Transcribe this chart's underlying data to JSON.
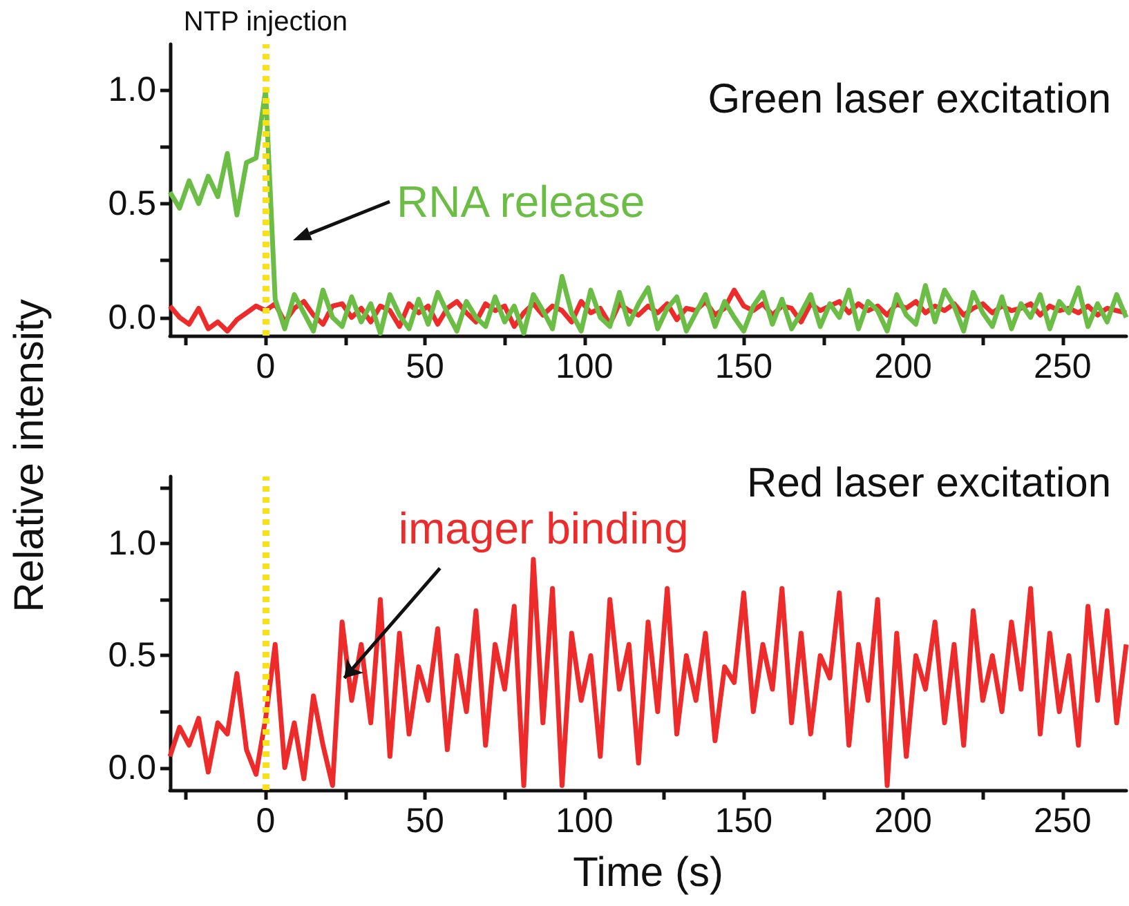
{
  "chart_data": [
    {
      "type": "line",
      "title": "Green laser excitation",
      "ylabel": "Relative intensity",
      "x": [
        -30,
        -27,
        -24,
        -21,
        -18,
        -15,
        -12,
        -9,
        -6,
        -3,
        0,
        3,
        6,
        9,
        12,
        15,
        18,
        21,
        24,
        27,
        30,
        33,
        36,
        39,
        42,
        45,
        48,
        51,
        54,
        57,
        60,
        63,
        66,
        69,
        72,
        75,
        78,
        81,
        84,
        87,
        90,
        93,
        96,
        99,
        102,
        105,
        108,
        111,
        114,
        117,
        120,
        123,
        126,
        129,
        132,
        135,
        138,
        141,
        144,
        147,
        150,
        153,
        156,
        159,
        162,
        165,
        168,
        171,
        174,
        177,
        180,
        183,
        186,
        189,
        192,
        195,
        198,
        201,
        204,
        207,
        210,
        213,
        216,
        219,
        222,
        225,
        228,
        231,
        234,
        237,
        240,
        243,
        246,
        249,
        252,
        255,
        258,
        261,
        264,
        267,
        270
      ],
      "series": [
        {
          "color": "#ee2b2b",
          "values": [
            0.05,
            0.0,
            -0.03,
            0.04,
            -0.05,
            -0.02,
            -0.06,
            -0.01,
            0.02,
            0.05,
            0.03,
            0.06,
            -0.02,
            0.04,
            0.07,
            0.01,
            -0.03,
            0.05,
            0.06,
            0.0,
            0.04,
            -0.02,
            0.05,
            0.03,
            -0.04,
            0.06,
            0.02,
            0.05,
            -0.03,
            0.04,
            0.07,
            0.02,
            -0.02,
            0.06,
            0.03,
            0.05,
            -0.04,
            0.02,
            0.06,
            0.01,
            0.05,
            0.03,
            -0.02,
            0.07,
            0.02,
            0.04,
            -0.03,
            0.06,
            0.03,
            0.01,
            0.05,
            0.02,
            0.06,
            -0.01,
            0.04,
            0.03,
            0.07,
            0.01,
            0.04,
            0.12,
            0.05,
            0.03,
            0.06,
            0.01,
            0.05,
            0.04,
            -0.02,
            0.06,
            0.03,
            0.05,
            0.07,
            0.02,
            0.06,
            0.03,
            0.05,
            0.01,
            0.06,
            0.04,
            0.07,
            0.02,
            0.05,
            0.03,
            0.06,
            0.01,
            0.04,
            0.06,
            0.02,
            0.05,
            0.03,
            0.04,
            0.06,
            0.01,
            0.05,
            0.03,
            0.04,
            0.02,
            0.05,
            0.01,
            0.04,
            0.03,
            0.02
          ]
        },
        {
          "color": "#6cbd45",
          "values": [
            0.55,
            0.48,
            0.6,
            0.5,
            0.62,
            0.53,
            0.72,
            0.45,
            0.68,
            0.7,
            1.0,
            0.08,
            -0.05,
            0.1,
            0.02,
            -0.06,
            0.12,
            0.0,
            -0.04,
            0.09,
            -0.02,
            0.06,
            -0.07,
            0.1,
            0.01,
            -0.05,
            0.08,
            -0.03,
            0.11,
            0.02,
            -0.06,
            0.07,
            0.0,
            -0.04,
            0.09,
            -0.02,
            0.05,
            -0.07,
            0.1,
            0.03,
            -0.05,
            0.18,
            0.02,
            -0.06,
            0.12,
            0.0,
            -0.04,
            0.11,
            -0.03,
            0.06,
            0.13,
            -0.05,
            0.04,
            0.09,
            -0.06,
            0.02,
            0.1,
            -0.04,
            0.07,
            0.0,
            -0.06,
            0.05,
            0.11,
            -0.03,
            0.08,
            -0.05,
            0.02,
            0.1,
            -0.04,
            0.06,
            0.0,
            0.12,
            -0.05,
            0.07,
            0.03,
            -0.06,
            0.1,
            0.01,
            -0.03,
            0.14,
            -0.02,
            0.12,
            0.05,
            -0.06,
            0.11,
            0.02,
            -0.04,
            0.09,
            -0.05,
            0.06,
            0.0,
            0.1,
            -0.05,
            0.07,
            0.02,
            0.13,
            -0.04,
            0.06,
            -0.02,
            0.1,
            0.0
          ]
        }
      ],
      "xlim": [
        -30,
        270
      ],
      "xticks": [
        {
          "value": -25,
          "label": null
        },
        0,
        {
          "value": 25,
          "label": null
        },
        50,
        {
          "value": 75,
          "label": null
        },
        100,
        {
          "value": 125,
          "label": null
        },
        150,
        {
          "value": 175,
          "label": null
        },
        200,
        {
          "value": 225,
          "label": null
        },
        250
      ],
      "ylim": [
        -0.08,
        1.2
      ],
      "yticks": [
        {
          "value": 0,
          "label": "0.0"
        },
        {
          "value": 0.25,
          "label": null
        },
        {
          "value": 0.5,
          "label": "0.5"
        },
        {
          "value": 0.75,
          "label": null
        },
        {
          "value": 1,
          "label": "1.0"
        }
      ],
      "ref_lines": [
        {
          "axis": "x",
          "value": 0,
          "label": "NTP injection",
          "color": "#f7e11c",
          "line_style": "dotted"
        }
      ],
      "annotations": [
        "RNA release"
      ]
    },
    {
      "type": "line",
      "title": "Red laser excitation",
      "xlabel": "Time (s)",
      "x": [
        -30,
        -27,
        -24,
        -21,
        -18,
        -15,
        -12,
        -9,
        -6,
        -3,
        0,
        3,
        6,
        9,
        12,
        15,
        18,
        21,
        24,
        27,
        30,
        33,
        36,
        39,
        42,
        45,
        48,
        51,
        54,
        57,
        60,
        63,
        66,
        69,
        72,
        75,
        78,
        81,
        84,
        87,
        90,
        93,
        96,
        99,
        102,
        105,
        108,
        111,
        114,
        117,
        120,
        123,
        126,
        129,
        132,
        135,
        138,
        141,
        144,
        147,
        150,
        153,
        156,
        159,
        162,
        165,
        168,
        171,
        174,
        177,
        180,
        183,
        186,
        189,
        192,
        195,
        198,
        201,
        204,
        207,
        210,
        213,
        216,
        219,
        222,
        225,
        228,
        231,
        234,
        237,
        240,
        243,
        246,
        249,
        252,
        255,
        258,
        261,
        264,
        267,
        270
      ],
      "series": [
        {
          "color": "#ee2b2b",
          "values": [
            0.05,
            0.18,
            0.1,
            0.22,
            -0.02,
            0.2,
            0.15,
            0.42,
            0.08,
            -0.03,
            0.22,
            0.55,
            0.0,
            0.2,
            -0.05,
            0.32,
            0.1,
            -0.08,
            0.65,
            0.3,
            0.55,
            0.2,
            0.75,
            0.05,
            0.6,
            0.15,
            0.45,
            0.3,
            0.62,
            0.08,
            0.5,
            0.25,
            0.7,
            0.1,
            0.55,
            0.35,
            0.72,
            -0.08,
            0.93,
            0.2,
            0.8,
            -0.08,
            0.6,
            0.3,
            0.5,
            0.05,
            0.75,
            0.35,
            0.55,
            0.02,
            0.65,
            0.25,
            0.8,
            0.15,
            0.5,
            0.3,
            0.6,
            0.12,
            0.45,
            0.38,
            0.78,
            0.25,
            0.55,
            0.35,
            0.8,
            0.2,
            0.6,
            0.15,
            0.5,
            0.4,
            0.78,
            0.1,
            0.55,
            0.3,
            0.75,
            -0.08,
            0.6,
            0.05,
            0.5,
            0.35,
            0.65,
            0.2,
            0.55,
            0.1,
            0.7,
            0.3,
            0.5,
            0.25,
            0.65,
            0.35,
            0.8,
            0.15,
            0.6,
            0.25,
            0.5,
            0.1,
            0.72,
            0.3,
            0.7,
            0.2,
            0.55
          ]
        }
      ],
      "xlim": [
        -30,
        270
      ],
      "xticks": [
        {
          "value": -25,
          "label": null
        },
        0,
        {
          "value": 25,
          "label": null
        },
        50,
        {
          "value": 75,
          "label": null
        },
        100,
        {
          "value": 125,
          "label": null
        },
        150,
        {
          "value": 175,
          "label": null
        },
        200,
        {
          "value": 225,
          "label": null
        },
        250
      ],
      "ylim": [
        -0.1,
        1.3
      ],
      "yticks": [
        {
          "value": 0,
          "label": "0.0"
        },
        {
          "value": 0.25,
          "label": null
        },
        {
          "value": 0.5,
          "label": "0.5"
        },
        {
          "value": 0.75,
          "label": null
        },
        {
          "value": 1,
          "label": "1.0"
        },
        {
          "value": 1.25,
          "label": null
        }
      ],
      "ref_lines": [
        {
          "axis": "x",
          "value": 0,
          "label": null,
          "color": "#f7e11c",
          "line_style": "dotted"
        }
      ],
      "annotations": [
        {
          "text": "imager binding",
          "x": 24.7,
          "y": 0.4
        }
      ]
    }
  ]
}
